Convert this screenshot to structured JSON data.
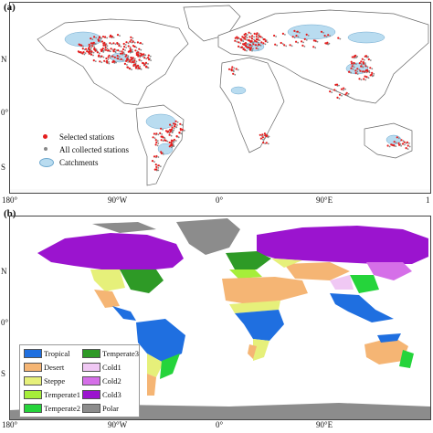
{
  "panel_a": {
    "label": "(a)",
    "lat_labels": [
      "N",
      "0°",
      "S"
    ],
    "legend": {
      "selected": "Selected stations",
      "all": "All collected stations",
      "catchments": "Catchments"
    },
    "colors": {
      "selected": "#e41e1e",
      "all": "#888888",
      "catchments": "#b9dcf0",
      "land": "#ffffff",
      "outline": "#666666"
    }
  },
  "axis_a": [
    "180°",
    "90°W",
    "0°",
    "90°E",
    "1"
  ],
  "panel_b": {
    "label": "(b)",
    "lat_labels": [
      "N",
      "0°",
      "S"
    ],
    "legend": [
      {
        "name": "Tropical",
        "color": "#1f6fe0"
      },
      {
        "name": "Temperate3",
        "color": "#2e9a26"
      },
      {
        "name": "Desert",
        "color": "#f5b574"
      },
      {
        "name": "Cold1",
        "color": "#f0c8f4"
      },
      {
        "name": "Steppe",
        "color": "#e6f07a"
      },
      {
        "name": "Cold2",
        "color": "#d56fe8"
      },
      {
        "name": "Temperate1",
        "color": "#a6ee3a"
      },
      {
        "name": "Cold3",
        "color": "#9b14cf"
      },
      {
        "name": "Temperate2",
        "color": "#25d43b"
      },
      {
        "name": "Polar",
        "color": "#8c8c8c"
      }
    ]
  },
  "axis_b": [
    "180°",
    "90°W",
    "0°",
    "90°E"
  ]
}
